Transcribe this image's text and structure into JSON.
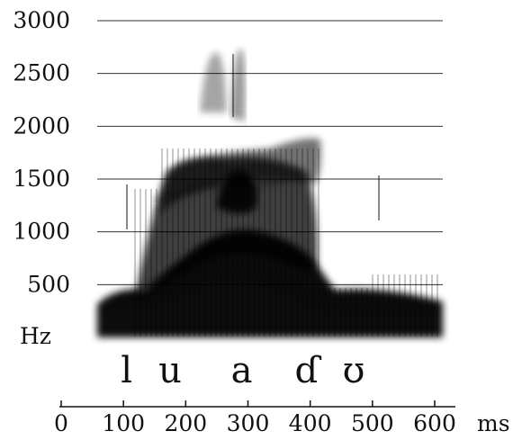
{
  "chart_data": {
    "type": "heatmap",
    "subtype": "spectrogram",
    "title": "",
    "y_unit": "Hz",
    "x_unit": "ms",
    "y_ticks": [
      "3000",
      "2500",
      "2000",
      "1500",
      "1000",
      "500"
    ],
    "x_ticks": [
      "0",
      "100",
      "200",
      "300",
      "400",
      "500",
      "600"
    ],
    "ylim": [
      0,
      3000
    ],
    "xlim": [
      0,
      600
    ],
    "grid": true,
    "segments": [
      {
        "label": "l",
        "time_ms": 105
      },
      {
        "label": "u",
        "time_ms": 175
      },
      {
        "label": "a",
        "time_ms": 290
      },
      {
        "label": "ɗ",
        "time_ms": 395
      },
      {
        "label": "ʊ",
        "time_ms": 470
      }
    ],
    "formants": [
      {
        "name": "F1",
        "points": [
          [
            70,
            300
          ],
          [
            150,
            400
          ],
          [
            260,
            650
          ],
          [
            340,
            550
          ],
          [
            420,
            350
          ],
          [
            510,
            300
          ],
          [
            600,
            250
          ]
        ]
      },
      {
        "name": "F2",
        "points": [
          [
            150,
            1300
          ],
          [
            230,
            1450
          ],
          [
            290,
            1380
          ],
          [
            360,
            1500
          ]
        ]
      },
      {
        "name": "F3",
        "points": [
          [
            220,
            2500
          ],
          [
            270,
            2500
          ]
        ]
      }
    ]
  }
}
